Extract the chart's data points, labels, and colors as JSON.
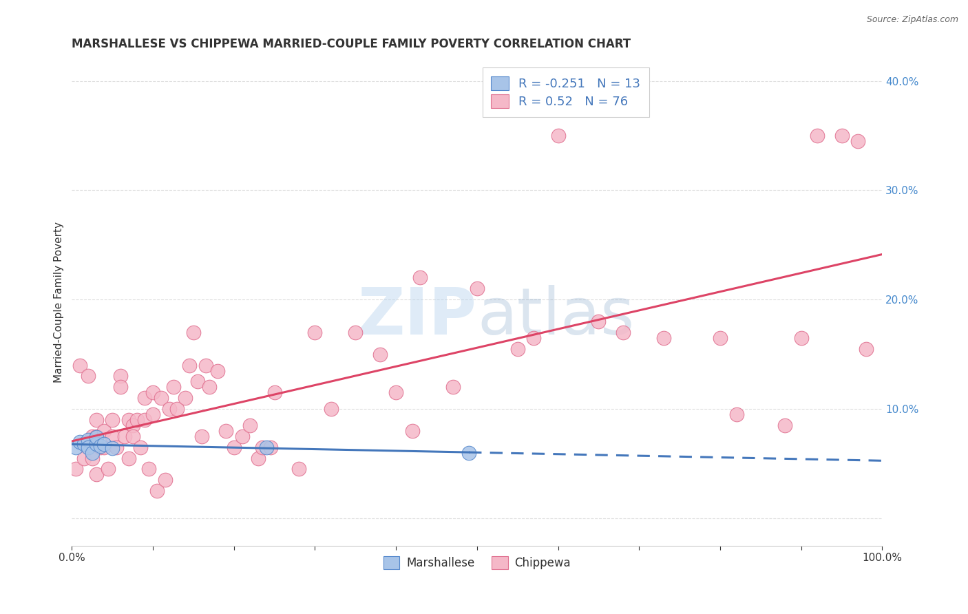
{
  "title": "MARSHALLESE VS CHIPPEWA MARRIED-COUPLE FAMILY POVERTY CORRELATION CHART",
  "source": "Source: ZipAtlas.com",
  "ylabel": "Married-Couple Family Poverty",
  "xlim": [
    0,
    1.0
  ],
  "ylim": [
    -0.025,
    0.42
  ],
  "xticks": [
    0.0,
    0.1,
    0.2,
    0.3,
    0.4,
    0.5,
    0.6,
    0.7,
    0.8,
    0.9,
    1.0
  ],
  "xticklabels": [
    "0.0%",
    "",
    "",
    "",
    "",
    "",
    "",
    "",
    "",
    "",
    "100.0%"
  ],
  "yticks": [
    0.0,
    0.1,
    0.2,
    0.3,
    0.4
  ],
  "right_yticklabels": [
    "",
    "10.0%",
    "20.0%",
    "30.0%",
    "40.0%"
  ],
  "marshallese_color": "#a8c4e8",
  "chippewa_color": "#f5b8c8",
  "marshallese_edge": "#5588cc",
  "chippewa_edge": "#e07090",
  "regression_marshallese_color": "#4477bb",
  "regression_chippewa_color": "#dd4466",
  "R_marshallese": -0.251,
  "N_marshallese": 13,
  "R_chippewa": 0.52,
  "N_chippewa": 76,
  "marshallese_x": [
    0.005,
    0.01,
    0.015,
    0.02,
    0.02,
    0.025,
    0.03,
    0.03,
    0.035,
    0.04,
    0.05,
    0.24,
    0.49
  ],
  "marshallese_y": [
    0.065,
    0.07,
    0.068,
    0.072,
    0.065,
    0.06,
    0.068,
    0.074,
    0.066,
    0.068,
    0.064,
    0.065,
    0.06
  ],
  "chippewa_x": [
    0.005,
    0.01,
    0.015,
    0.02,
    0.025,
    0.025,
    0.03,
    0.03,
    0.03,
    0.035,
    0.04,
    0.04,
    0.045,
    0.05,
    0.05,
    0.055,
    0.06,
    0.06,
    0.065,
    0.07,
    0.07,
    0.075,
    0.075,
    0.08,
    0.085,
    0.09,
    0.09,
    0.095,
    0.1,
    0.1,
    0.105,
    0.11,
    0.115,
    0.12,
    0.125,
    0.13,
    0.14,
    0.145,
    0.15,
    0.155,
    0.16,
    0.165,
    0.17,
    0.18,
    0.19,
    0.2,
    0.21,
    0.22,
    0.23,
    0.235,
    0.245,
    0.25,
    0.28,
    0.3,
    0.32,
    0.35,
    0.38,
    0.4,
    0.42,
    0.43,
    0.47,
    0.5,
    0.55,
    0.57,
    0.6,
    0.65,
    0.68,
    0.73,
    0.8,
    0.82,
    0.88,
    0.9,
    0.92,
    0.95,
    0.97,
    0.98
  ],
  "chippewa_y": [
    0.045,
    0.14,
    0.055,
    0.13,
    0.075,
    0.055,
    0.09,
    0.075,
    0.04,
    0.065,
    0.08,
    0.065,
    0.045,
    0.09,
    0.075,
    0.065,
    0.13,
    0.12,
    0.075,
    0.09,
    0.055,
    0.085,
    0.075,
    0.09,
    0.065,
    0.11,
    0.09,
    0.045,
    0.115,
    0.095,
    0.025,
    0.11,
    0.035,
    0.1,
    0.12,
    0.1,
    0.11,
    0.14,
    0.17,
    0.125,
    0.075,
    0.14,
    0.12,
    0.135,
    0.08,
    0.065,
    0.075,
    0.085,
    0.055,
    0.065,
    0.065,
    0.115,
    0.045,
    0.17,
    0.1,
    0.17,
    0.15,
    0.115,
    0.08,
    0.22,
    0.12,
    0.21,
    0.155,
    0.165,
    0.35,
    0.18,
    0.17,
    0.165,
    0.165,
    0.095,
    0.085,
    0.165,
    0.35,
    0.35,
    0.345,
    0.155
  ],
  "background_color": "#ffffff",
  "grid_color": "#dddddd",
  "figsize": [
    14.06,
    8.92
  ],
  "dpi": 100
}
